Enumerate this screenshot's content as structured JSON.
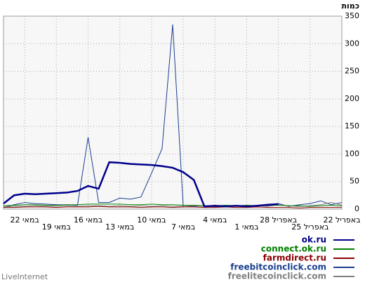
{
  "chart_data": {
    "type": "line",
    "y_label": "כמות",
    "footer": "LiveInternet",
    "categories": [
      null,
      null,
      "22 במאי",
      null,
      null,
      "19 במאי",
      null,
      null,
      "16 במאי",
      null,
      null,
      "13 במאי",
      null,
      null,
      "10 במאי",
      null,
      null,
      "7 במאי",
      null,
      null,
      "4 במאי",
      null,
      null,
      "1 במאי",
      null,
      null,
      "28 באפריל",
      null,
      null,
      "25 באפריל",
      null,
      null,
      "22 באפריל"
    ],
    "series": [
      {
        "name": "ok.ru",
        "color": "#00008b",
        "values": [
          10,
          25,
          28,
          27,
          28,
          29,
          30,
          33,
          42,
          37,
          85,
          84,
          82,
          81,
          80,
          78,
          75,
          67,
          53,
          5,
          6,
          5,
          6,
          5,
          6,
          8,
          9,
          null,
          null,
          null,
          null,
          null,
          null
        ]
      },
      {
        "name": "connect.ok.ru",
        "color": "#008000",
        "values": [
          6,
          7,
          8,
          8,
          7,
          7,
          8,
          8,
          9,
          9,
          9,
          9,
          8,
          8,
          9,
          8,
          8,
          7,
          7,
          6,
          6,
          7,
          6,
          7,
          6,
          7,
          7,
          6,
          6,
          5,
          6,
          7,
          6
        ]
      },
      {
        "name": "farmdirect.ru",
        "color": "#8b0000",
        "values": [
          3,
          3,
          4,
          4,
          4,
          3,
          4,
          4,
          4,
          5,
          4,
          4,
          4,
          3,
          4,
          4,
          3,
          4,
          4,
          3,
          3,
          4,
          3,
          3,
          4,
          3,
          3,
          3,
          2,
          3,
          3,
          3,
          3
        ]
      },
      {
        "name": "freebitcoinclick.com",
        "color": "#1a3f8f",
        "values": [
          3,
          8,
          12,
          10,
          9,
          8,
          8,
          7,
          130,
          12,
          12,
          20,
          18,
          22,
          65,
          110,
          335,
          5,
          5,
          6,
          4,
          5,
          6,
          5,
          7,
          6,
          10,
          5,
          8,
          10,
          15,
          8,
          12
        ]
      },
      {
        "name": "freelitecoinclick.com",
        "color": "#808080",
        "values": [
          4,
          5,
          5,
          6,
          5,
          5,
          6,
          5,
          6,
          6,
          5,
          6,
          5,
          6,
          5,
          6,
          5,
          5,
          6,
          5,
          5,
          4,
          5,
          5,
          6,
          5,
          8,
          6,
          5,
          6,
          8,
          12,
          7
        ]
      }
    ],
    "ylim": [
      0,
      350
    ],
    "yticks": [
      0,
      50,
      100,
      150,
      200,
      250,
      300,
      350
    ],
    "grid": true
  }
}
